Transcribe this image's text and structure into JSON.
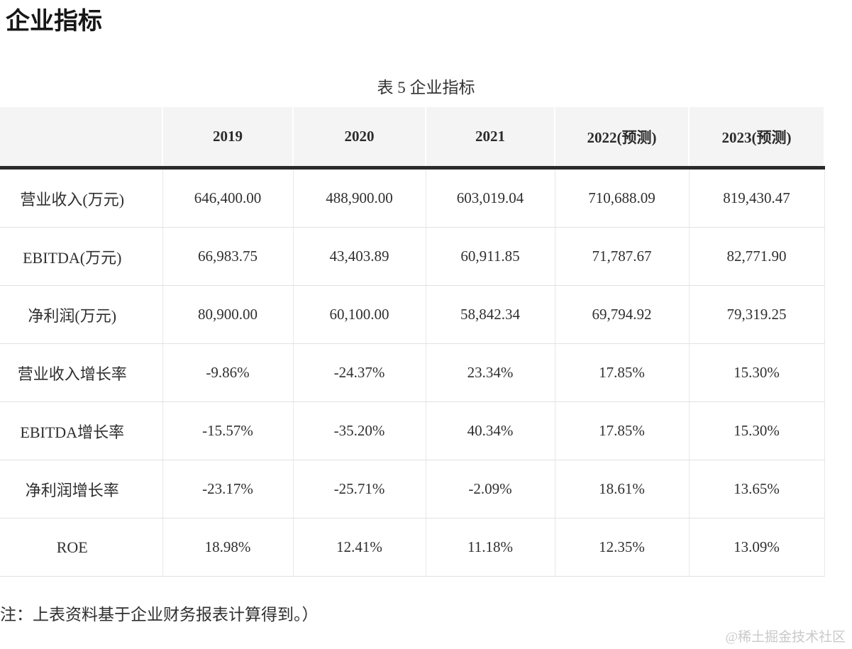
{
  "page": {
    "title": "企业指标",
    "table_caption": "表 5 企业指标",
    "note": "注：上表资料基于企业财务报表计算得到。）",
    "watermark": "@稀土掘金技术社区"
  },
  "table": {
    "columns": [
      "",
      "2019",
      "2020",
      "2021",
      "2022(预测)",
      "2023(预测)"
    ],
    "rows": [
      {
        "label": "营业收入(万元)",
        "values": [
          "646,400.00",
          "488,900.00",
          "603,019.04",
          "710,688.09",
          "819,430.47"
        ]
      },
      {
        "label": "EBITDA(万元)",
        "values": [
          "66,983.75",
          "43,403.89",
          "60,911.85",
          "71,787.67",
          "82,771.90"
        ]
      },
      {
        "label": "净利润(万元)",
        "values": [
          "80,900.00",
          "60,100.00",
          "58,842.34",
          "69,794.92",
          "79,319.25"
        ]
      },
      {
        "label": "营业收入增长率",
        "values": [
          "-9.86%",
          "-24.37%",
          "23.34%",
          "17.85%",
          "15.30%"
        ]
      },
      {
        "label": "EBITDA增长率",
        "values": [
          "-15.57%",
          "-35.20%",
          "40.34%",
          "17.85%",
          "15.30%"
        ]
      },
      {
        "label": "净利润增长率",
        "values": [
          "-23.17%",
          "-25.71%",
          "-2.09%",
          "18.61%",
          "13.65%"
        ]
      },
      {
        "label": "ROE",
        "values": [
          "18.98%",
          "12.41%",
          "11.18%",
          "12.35%",
          "13.09%"
        ]
      }
    ]
  },
  "colors": {
    "header_bg": "#f4f4f4",
    "thick_rule": "#2b2b2b",
    "grid_line": "#e8e8e8",
    "text": "#2f2f2f",
    "watermark": "#c9c9c9"
  }
}
